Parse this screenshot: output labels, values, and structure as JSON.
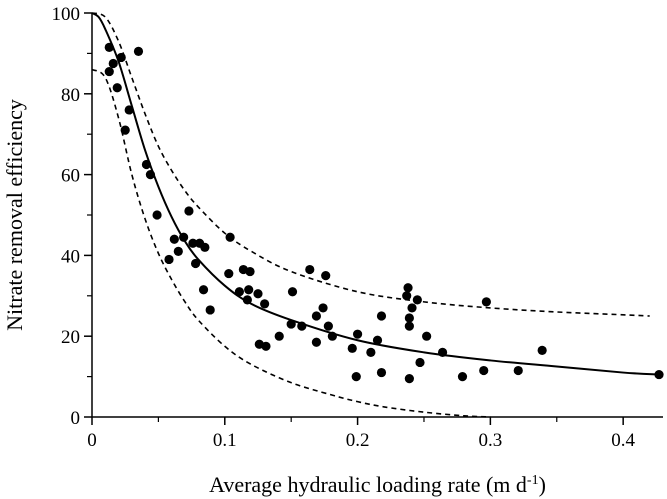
{
  "chart_data": {
    "type": "scatter",
    "title": "",
    "xlabel": "Average hydraulic loading rate (m d",
    "xlabel_superscript": "-1",
    "xlabel_suffix": ")",
    "ylabel": "Nitrate removal efficiency",
    "xlim": [
      0,
      0.43
    ],
    "ylim": [
      0,
      100
    ],
    "x_ticks": [
      0,
      0.1,
      0.2,
      0.3,
      0.4
    ],
    "x_tick_labels": [
      "0",
      "0.1",
      "0.2",
      "0.3",
      "0.4"
    ],
    "y_ticks": [
      0,
      20,
      40,
      60,
      80,
      100
    ],
    "y_tick_labels": [
      "0",
      "20",
      "40",
      "60",
      "80",
      "100"
    ],
    "grid": false,
    "legend": "none",
    "points": [
      {
        "x": 0.013,
        "y": 91.5
      },
      {
        "x": 0.013,
        "y": 85.5
      },
      {
        "x": 0.016,
        "y": 87.5
      },
      {
        "x": 0.019,
        "y": 81.5
      },
      {
        "x": 0.022,
        "y": 89
      },
      {
        "x": 0.025,
        "y": 71
      },
      {
        "x": 0.028,
        "y": 76
      },
      {
        "x": 0.035,
        "y": 90.5
      },
      {
        "x": 0.041,
        "y": 62.5
      },
      {
        "x": 0.044,
        "y": 60
      },
      {
        "x": 0.049,
        "y": 50
      },
      {
        "x": 0.058,
        "y": 39
      },
      {
        "x": 0.062,
        "y": 44
      },
      {
        "x": 0.065,
        "y": 41
      },
      {
        "x": 0.069,
        "y": 44.5
      },
      {
        "x": 0.073,
        "y": 51
      },
      {
        "x": 0.076,
        "y": 43
      },
      {
        "x": 0.078,
        "y": 38
      },
      {
        "x": 0.081,
        "y": 43
      },
      {
        "x": 0.085,
        "y": 42
      },
      {
        "x": 0.084,
        "y": 31.5
      },
      {
        "x": 0.089,
        "y": 26.5
      },
      {
        "x": 0.103,
        "y": 35.5
      },
      {
        "x": 0.104,
        "y": 44.5
      },
      {
        "x": 0.111,
        "y": 31
      },
      {
        "x": 0.114,
        "y": 36.5
      },
      {
        "x": 0.117,
        "y": 29
      },
      {
        "x": 0.119,
        "y": 36
      },
      {
        "x": 0.118,
        "y": 31.5
      },
      {
        "x": 0.125,
        "y": 30.5
      },
      {
        "x": 0.126,
        "y": 18
      },
      {
        "x": 0.131,
        "y": 17.5
      },
      {
        "x": 0.13,
        "y": 28
      },
      {
        "x": 0.141,
        "y": 20
      },
      {
        "x": 0.15,
        "y": 23
      },
      {
        "x": 0.151,
        "y": 31
      },
      {
        "x": 0.158,
        "y": 22.5
      },
      {
        "x": 0.164,
        "y": 36.5
      },
      {
        "x": 0.169,
        "y": 25
      },
      {
        "x": 0.169,
        "y": 18.5
      },
      {
        "x": 0.174,
        "y": 27
      },
      {
        "x": 0.176,
        "y": 35
      },
      {
        "x": 0.178,
        "y": 22.5
      },
      {
        "x": 0.181,
        "y": 20
      },
      {
        "x": 0.196,
        "y": 17
      },
      {
        "x": 0.199,
        "y": 10
      },
      {
        "x": 0.2,
        "y": 20.5
      },
      {
        "x": 0.21,
        "y": 16
      },
      {
        "x": 0.215,
        "y": 19
      },
      {
        "x": 0.218,
        "y": 11
      },
      {
        "x": 0.218,
        "y": 25
      },
      {
        "x": 0.237,
        "y": 30
      },
      {
        "x": 0.238,
        "y": 32
      },
      {
        "x": 0.239,
        "y": 24.5
      },
      {
        "x": 0.239,
        "y": 22.5
      },
      {
        "x": 0.241,
        "y": 27
      },
      {
        "x": 0.239,
        "y": 9.5
      },
      {
        "x": 0.245,
        "y": 29
      },
      {
        "x": 0.247,
        "y": 13.5
      },
      {
        "x": 0.252,
        "y": 20
      },
      {
        "x": 0.264,
        "y": 16
      },
      {
        "x": 0.279,
        "y": 10
      },
      {
        "x": 0.295,
        "y": 11.5
      },
      {
        "x": 0.297,
        "y": 28.5
      },
      {
        "x": 0.321,
        "y": 11.5
      },
      {
        "x": 0.339,
        "y": 16.5
      },
      {
        "x": 0.427,
        "y": 10.5
      }
    ],
    "fit_curve": {
      "style": "solid",
      "x": [
        0,
        0.005,
        0.01,
        0.02,
        0.03,
        0.04,
        0.05,
        0.06,
        0.07,
        0.08,
        0.1,
        0.12,
        0.15,
        0.2,
        0.25,
        0.3,
        0.35,
        0.4,
        0.427
      ],
      "y": [
        100,
        99,
        96,
        88,
        77,
        66,
        57,
        49.5,
        43.5,
        39,
        32.5,
        28,
        24,
        19,
        16,
        14,
        12.5,
        11,
        10.5
      ]
    },
    "upper_bound": {
      "style": "dashed",
      "x": [
        0,
        0.01,
        0.02,
        0.03,
        0.04,
        0.05,
        0.06,
        0.07,
        0.08,
        0.1,
        0.12,
        0.15,
        0.2,
        0.25,
        0.3,
        0.35,
        0.4,
        0.42
      ],
      "y": [
        100,
        99,
        93,
        84,
        75,
        67,
        61,
        56,
        52,
        45.5,
        41,
        36,
        31,
        28.5,
        27,
        26,
        25.3,
        25
      ]
    },
    "lower_bound": {
      "style": "dashed",
      "x": [
        0,
        0.01,
        0.02,
        0.03,
        0.04,
        0.05,
        0.06,
        0.07,
        0.08,
        0.1,
        0.12,
        0.15,
        0.18,
        0.2,
        0.22,
        0.25,
        0.28,
        0.3
      ],
      "y": [
        86,
        84,
        74,
        60,
        49,
        40.5,
        34,
        28.5,
        24,
        17.5,
        13,
        8.5,
        5.5,
        3.8,
        2.5,
        1.2,
        0.3,
        0
      ]
    }
  }
}
